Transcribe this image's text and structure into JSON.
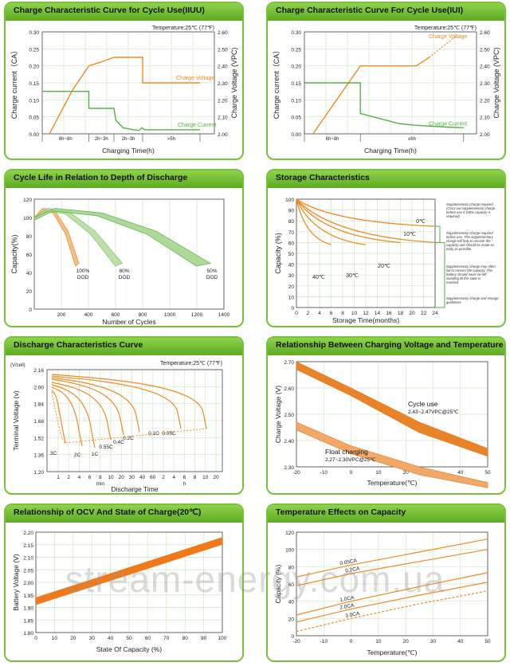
{
  "panels": [
    {
      "title": "Charge Characteristic Curve for Cycle Use(IIUU)",
      "chart_data": {
        "type": "line",
        "annotation": "Temperature:25℃ (77℉)",
        "xlabel": "Charging Time(h)",
        "ylabel": "Charge current（CA）",
        "y2label": "Charge Voltage (VPC)",
        "yticks": [
          "0.00",
          "0.05",
          "0.10",
          "0.15",
          "0.20",
          "0.25",
          "0.30"
        ],
        "y2ticks": [
          "2.00",
          "2.10",
          "2.20",
          "2.30",
          "2.40",
          "2.50",
          "2.60"
        ],
        "segments": [
          "6h~8h",
          "2h~3h",
          "2h~3h",
          ">5h"
        ],
        "ylim": [
          0,
          0.3
        ],
        "y2lim": [
          2.0,
          2.6
        ],
        "series": [
          {
            "name": "Charge Voltage",
            "axis": "right",
            "color": "#f08a24",
            "points": [
              [
                0.2,
                2.0
              ],
              [
                0.85,
                2.26
              ],
              [
                1.3,
                2.4
              ],
              [
                1.6,
                2.42
              ],
              [
                2.0,
                2.45
              ],
              [
                2.0,
                2.45
              ],
              [
                2.8,
                2.45
              ],
              [
                2.8,
                2.3
              ],
              [
                4.4,
                2.3
              ]
            ]
          },
          {
            "name": "Charge Current",
            "axis": "left",
            "color": "#55b043",
            "points": [
              [
                0,
                0.125
              ],
              [
                1.3,
                0.125
              ],
              [
                1.3,
                0.075
              ],
              [
                2.0,
                0.075
              ],
              [
                2.05,
                0.04
              ],
              [
                2.25,
                0.018
              ],
              [
                2.55,
                0.012
              ],
              [
                2.7,
                0.01
              ],
              [
                2.78,
                0.018
              ],
              [
                2.86,
                0.012
              ],
              [
                4.4,
                0.012
              ]
            ]
          }
        ]
      }
    },
    {
      "title": "Charge Characteristic Curve For Cycle Use(IUI)",
      "chart_data": {
        "type": "line",
        "annotation": "Temperature:25℃ (77℉)",
        "xlabel": "Charging Time(h)",
        "ylabel": "Charge current（CA）",
        "y2label": "Charge Voltage (VPC)",
        "yticks": [
          "0.00",
          "0.05",
          "0.10",
          "0.15",
          "0.20",
          "0.25",
          "0.30"
        ],
        "y2ticks": [
          "2.00",
          "2.10",
          "2.20",
          "2.30",
          "2.40",
          "2.50",
          "2.60"
        ],
        "segments": [
          "6h~8h",
          "≤6h"
        ],
        "ylim": [
          0,
          0.3
        ],
        "y2lim": [
          2.0,
          2.6
        ],
        "series": [
          {
            "name": "Charge Voltage",
            "axis": "right",
            "color": "#f08a24",
            "points": [
              [
                0.2,
                2.0
              ],
              [
                1.3,
                2.4
              ],
              [
                1.3,
                2.4
              ],
              [
                2.6,
                2.4
              ],
              [
                2.9,
                2.45
              ],
              [
                3.3,
                2.53
              ],
              [
                3.55,
                2.58
              ]
            ]
          },
          {
            "name": "Charge Current",
            "axis": "left",
            "color": "#55b043",
            "points": [
              [
                0,
                0.15
              ],
              [
                1.3,
                0.15
              ],
              [
                1.3,
                0.06
              ],
              [
                1.6,
                0.05
              ],
              [
                1.9,
                0.04
              ],
              [
                2.2,
                0.03
              ],
              [
                2.6,
                0.025
              ],
              [
                3.3,
                0.02
              ],
              [
                3.7,
                0.018
              ]
            ]
          }
        ]
      }
    },
    {
      "title": "Cycle Life in Relation to Depth of Discharge",
      "chart_data": {
        "type": "line",
        "xlabel": "Number of Cycles",
        "ylabel": "Capacity(%)",
        "xlim": [
          0,
          1400
        ],
        "ylim": [
          0,
          120
        ],
        "xticks": [
          200,
          400,
          600,
          800,
          1000,
          1200,
          1400
        ],
        "yticks": [
          0,
          20,
          40,
          60,
          80,
          100,
          120
        ],
        "series": [
          {
            "name": "100% DOD",
            "color": "#f08a24",
            "x": [
              0,
              60,
              150,
              250,
              330
            ],
            "y": [
              100,
              110,
              108,
              85,
              50
            ]
          },
          {
            "name": "80% DOD",
            "color": "#7cc36a",
            "x": [
              0,
              100,
              250,
              450,
              650
            ],
            "y": [
              100,
              110,
              107,
              85,
              50
            ]
          },
          {
            "name": "50% DOD",
            "color": "#55b043",
            "x": [
              0,
              150,
              500,
              900,
              1300
            ],
            "y": [
              100,
              110,
              105,
              85,
              50
            ]
          }
        ],
        "labels": [
          "100%",
          "DOD",
          "80%",
          "DOD",
          "50%",
          "DOD"
        ]
      }
    },
    {
      "title": "Storage Characteristics",
      "chart_data": {
        "type": "line",
        "xlabel": "Storage  Time(months)",
        "ylabel": "Capacity  (%)",
        "xticks": [
          0,
          2,
          4,
          6,
          8,
          10,
          12,
          14,
          16,
          18,
          20,
          22,
          24
        ],
        "yticks": [
          0,
          10,
          20,
          30,
          40,
          50,
          60,
          70,
          80,
          90,
          100
        ],
        "xlim": [
          0,
          24
        ],
        "ylim": [
          0,
          100
        ],
        "series": [
          {
            "name": "0℃",
            "color": "#f08a24",
            "x": [
              0,
              24
            ],
            "y": [
              100,
              75
            ]
          },
          {
            "name": "10℃",
            "color": "#f08a24",
            "x": [
              0,
              24
            ],
            "y": [
              100,
              60
            ]
          },
          {
            "name": "20℃",
            "color": "#f08a24",
            "x": [
              0,
              18
            ],
            "y": [
              100,
              60
            ]
          },
          {
            "name": "30℃",
            "color": "#f08a24",
            "x": [
              0,
              12
            ],
            "y": [
              100,
              58
            ]
          },
          {
            "name": "40℃",
            "color": "#f08a24",
            "x": [
              0,
              6
            ],
            "y": [
              100,
              58
            ]
          }
        ],
        "notes": [
          "Supplementary charge required (Carry out supplementary charge before use if 100% capacity is required)",
          "Supplementary charge required before use. This supplementary charge will help to recover the capacity and should be made  as early as possible.",
          "Supplementary charge may often fail to recover the capacity. The battery should never be left standing till this state is reached",
          "Supplementary charge and storage guidelines"
        ]
      }
    },
    {
      "title": "Discharge Characteristics Curve",
      "chart_data": {
        "type": "line",
        "annotation": "Temperature:25℃ (77℉)",
        "xlabel": "Discharge  Time",
        "ylabel": "Terminal  Voltage  (v)",
        "yunit": "(V/cell)",
        "yticks": [
          "1.20",
          "1.36",
          "1.52",
          "1.68",
          "1.84",
          "2.00",
          "2.16"
        ],
        "xticks_min": [
          "1",
          "2",
          "4",
          "6",
          "8",
          "10",
          "20",
          "30",
          "40",
          "60"
        ],
        "xticks_h": [
          "2",
          "4",
          "6",
          "8",
          "10",
          "20"
        ],
        "xunit_min": "min",
        "xunit_h": "h",
        "series": [
          {
            "name": "3C",
            "color": "#f08a24"
          },
          {
            "name": "2C",
            "color": "#f08a24"
          },
          {
            "name": "1C",
            "color": "#f08a24"
          },
          {
            "name": "0.55C",
            "color": "#f08a24"
          },
          {
            "name": "0.4C",
            "color": "#f08a24"
          },
          {
            "name": "0.2C",
            "color": "#f08a24"
          },
          {
            "name": "0.1C",
            "color": "#f08a24"
          },
          {
            "name": "0.05C",
            "color": "#f08a24"
          }
        ]
      }
    },
    {
      "title": "Relationship Between Charging Voltage and Temperature",
      "chart_data": {
        "type": "area",
        "xlabel": "Temperature(℃)",
        "ylabel": "Charge Voltage (V)",
        "xlim": [
          -20,
          50
        ],
        "ylim": [
          2.3,
          2.7
        ],
        "xticks": [
          -20,
          -10,
          0,
          10,
          20,
          30,
          40,
          50
        ],
        "yticks": [
          2.3,
          2.4,
          2.5,
          2.6,
          2.7
        ],
        "series": [
          {
            "name": "Cycle use",
            "sub": "2.43~2.47VPC@25℃",
            "x": [
              -20,
              0,
              25,
              50
            ],
            "upper": [
              2.7,
              2.6,
              2.47,
              2.37
            ],
            "lower": [
              2.67,
              2.57,
              2.43,
              2.34
            ]
          },
          {
            "name": "Float charging",
            "sub": "2.27~2.30VPC@25℃",
            "x": [
              -20,
              0,
              25,
              50
            ],
            "upper": [
              2.47,
              2.38,
              2.3,
              2.24
            ],
            "lower": [
              2.44,
              2.35,
              2.27,
              2.22
            ]
          }
        ]
      }
    },
    {
      "title": "Relationship of OCV And State of Charge(20℃)",
      "chart_data": {
        "type": "area",
        "xlabel": "State Of Capacity (%)",
        "ylabel": "Battery Voltage (V)",
        "xlim": [
          0,
          100
        ],
        "ylim": [
          1.8,
          2.2
        ],
        "xticks": [
          0,
          10,
          20,
          30,
          40,
          50,
          60,
          70,
          80,
          90,
          100
        ],
        "yticks": [
          1.8,
          1.85,
          1.9,
          1.95,
          2.0,
          2.05,
          2.1,
          2.15,
          2.2
        ],
        "band": {
          "x": [
            0,
            100
          ],
          "upper": [
            1.94,
            2.18
          ],
          "lower": [
            1.91,
            2.15
          ]
        }
      }
    },
    {
      "title": "Temperature Effects on Capacity",
      "chart_data": {
        "type": "line",
        "xlabel": "Temperature(℃)",
        "ylabel": "Capacity (%)",
        "xlim": [
          -20,
          50
        ],
        "ylim": [
          0,
          120
        ],
        "xticks": [
          -20,
          -10,
          0,
          10,
          20,
          30,
          40,
          50
        ],
        "yticks": [
          0,
          20,
          40,
          60,
          80,
          100,
          120
        ],
        "series": [
          {
            "name": "0.05CA",
            "x": [
              -20,
              0,
              25,
              50
            ],
            "y": [
              68,
              82,
              97,
              112
            ]
          },
          {
            "name": "0.2CA",
            "x": [
              -20,
              0,
              25,
              50
            ],
            "y": [
              58,
              72,
              86,
              100
            ]
          },
          {
            "name": "1.0CA",
            "x": [
              -20,
              0,
              25,
              50
            ],
            "y": [
              24,
              40,
              57,
              73
            ]
          },
          {
            "name": "2.0CA",
            "x": [
              -20,
              0,
              25,
              50
            ],
            "y": [
              16,
              31,
              47,
              62
            ]
          },
          {
            "name": "3.0CA",
            "x": [
              -20,
              0,
              25,
              50
            ],
            "y": [
              5,
              20,
              37,
              52
            ],
            "dashed": true
          }
        ]
      }
    }
  ],
  "watermark": "stream-energy.com.ua"
}
